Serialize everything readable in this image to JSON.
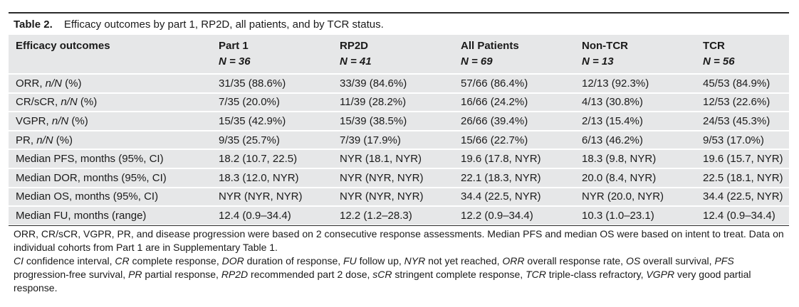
{
  "caption": {
    "label": "Table 2.",
    "title": "Efficacy outcomes by part 1, RP2D, all patients, and by TCR status."
  },
  "columns": [
    {
      "name": "Efficacy outcomes",
      "n": ""
    },
    {
      "name": "Part 1",
      "n": "N = 36"
    },
    {
      "name": "RP2D",
      "n": "N = 41"
    },
    {
      "name": "All Patients",
      "n": "N = 69"
    },
    {
      "name": "Non-TCR",
      "n": "N = 13"
    },
    {
      "name": "TCR",
      "n": "N = 56"
    }
  ],
  "rows": [
    {
      "label_a": "ORR, ",
      "label_i": "n/N",
      "label_b": " (%)",
      "values": [
        "31/35 (88.6%)",
        "33/39 (84.6%)",
        "57/66 (86.4%)",
        "12/13 (92.3%)",
        "45/53 (84.9%)"
      ]
    },
    {
      "label_a": "CR/sCR, ",
      "label_i": "n/N",
      "label_b": " (%)",
      "values": [
        "7/35 (20.0%)",
        "11/39 (28.2%)",
        "16/66 (24.2%)",
        "4/13 (30.8%)",
        "12/53 (22.6%)"
      ]
    },
    {
      "label_a": "VGPR, ",
      "label_i": "n/N",
      "label_b": " (%)",
      "values": [
        "15/35 (42.9%)",
        "15/39 (38.5%)",
        "26/66 (39.4%)",
        "2/13 (15.4%)",
        "24/53 (45.3%)"
      ]
    },
    {
      "label_a": "PR, ",
      "label_i": "n/N",
      "label_b": " (%)",
      "values": [
        "9/35 (25.7%)",
        "7/39 (17.9%)",
        "15/66 (22.7%)",
        "6/13 (46.2%)",
        "9/53 (17.0%)"
      ]
    },
    {
      "label_a": "Median PFS, months (95%, CI)",
      "label_i": "",
      "label_b": "",
      "values": [
        "18.2 (10.7, 22.5)",
        "NYR (18.1, NYR)",
        "19.6 (17.8, NYR)",
        "18.3 (9.8, NYR)",
        "19.6 (15.7, NYR)"
      ]
    },
    {
      "label_a": "Median DOR, months (95%, CI)",
      "label_i": "",
      "label_b": "",
      "values": [
        "18.3 (12.0, NYR)",
        "NYR (NYR, NYR)",
        "22.1 (18.3, NYR)",
        "20.0 (8.4, NYR)",
        "22.5 (18.1, NYR)"
      ]
    },
    {
      "label_a": "Median OS, months (95%, CI)",
      "label_i": "",
      "label_b": "",
      "values": [
        "NYR (NYR, NYR)",
        "NYR (NYR, NYR)",
        "34.4 (22.5, NYR)",
        "NYR (20.0, NYR)",
        "34.4 (22.5, NYR)"
      ]
    },
    {
      "label_a": "Median FU, months (range)",
      "label_i": "",
      "label_b": "",
      "values": [
        "12.4 (0.9–34.4)",
        "12.2 (1.2–28.3)",
        "12.2 (0.9–34.4)",
        "10.3 (1.0–23.1)",
        "12.4 (0.9–34.4)"
      ]
    }
  ],
  "footnote": "ORR, CR/sCR, VGPR, PR, and disease progression were based on 2 consecutive response assessments. Median PFS and median OS were based on intent to treat. Data on individual cohorts from Part 1 are in Supplementary Table 1.",
  "abbreviations": [
    {
      "term": "CI",
      "def": " confidence interval, "
    },
    {
      "term": "CR",
      "def": " complete response, "
    },
    {
      "term": "DOR",
      "def": " duration of response, "
    },
    {
      "term": "FU",
      "def": " follow up, "
    },
    {
      "term": "NYR",
      "def": " not yet reached, "
    },
    {
      "term": "ORR",
      "def": " overall response rate, "
    },
    {
      "term": "OS",
      "def": " overall survival, "
    },
    {
      "term": "PFS",
      "def": " progression-free survival, "
    },
    {
      "term": "PR",
      "def": " partial response, "
    },
    {
      "term": "RP2D",
      "def": " recommended part 2 dose, "
    },
    {
      "term": "sCR",
      "def": " stringent complete response, "
    },
    {
      "term": "TCR",
      "def": " triple-class refractory, "
    },
    {
      "term": "VGPR",
      "def": " very good partial response."
    }
  ]
}
